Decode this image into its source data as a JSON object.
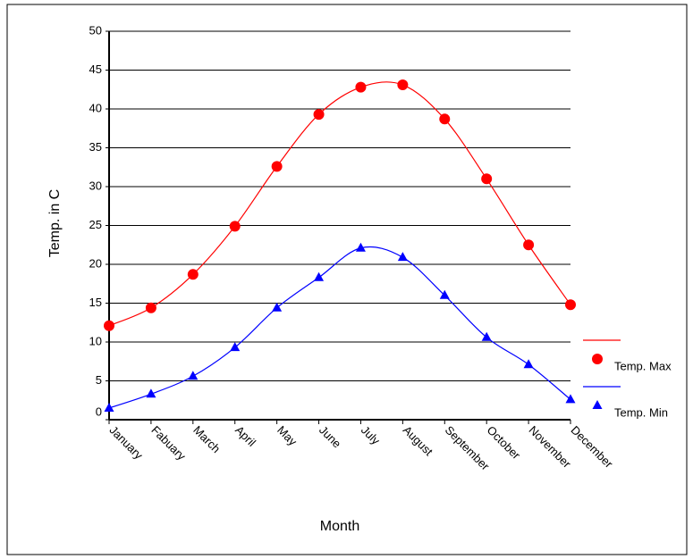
{
  "chart_data": {
    "type": "line",
    "x_label": "Month",
    "y_label": "Temp. in C",
    "categories": [
      "January",
      "Fabuary",
      "March",
      "April",
      "May",
      "June",
      "July",
      "August",
      "September",
      "October",
      "November",
      "December"
    ],
    "series": [
      {
        "name": "Temp. Max",
        "color": "#ff0000",
        "marker": "circle",
        "values": [
          12.1,
          14.4,
          18.7,
          24.9,
          32.6,
          39.3,
          42.8,
          43.1,
          38.7,
          31,
          22.5,
          14.8
        ]
      },
      {
        "name": "Temp. Min",
        "color": "#0000ff",
        "marker": "triangle",
        "values": [
          1.5,
          3.3,
          5.6,
          9.3,
          14.4,
          18.3,
          22.1,
          20.9,
          16,
          10.6,
          7.1,
          2.6
        ]
      }
    ],
    "ylim": [
      0,
      50
    ],
    "yticks": [
      0,
      5,
      10,
      15,
      20,
      25,
      30,
      35,
      40,
      45,
      50
    ],
    "grid": true,
    "legend": "right"
  }
}
